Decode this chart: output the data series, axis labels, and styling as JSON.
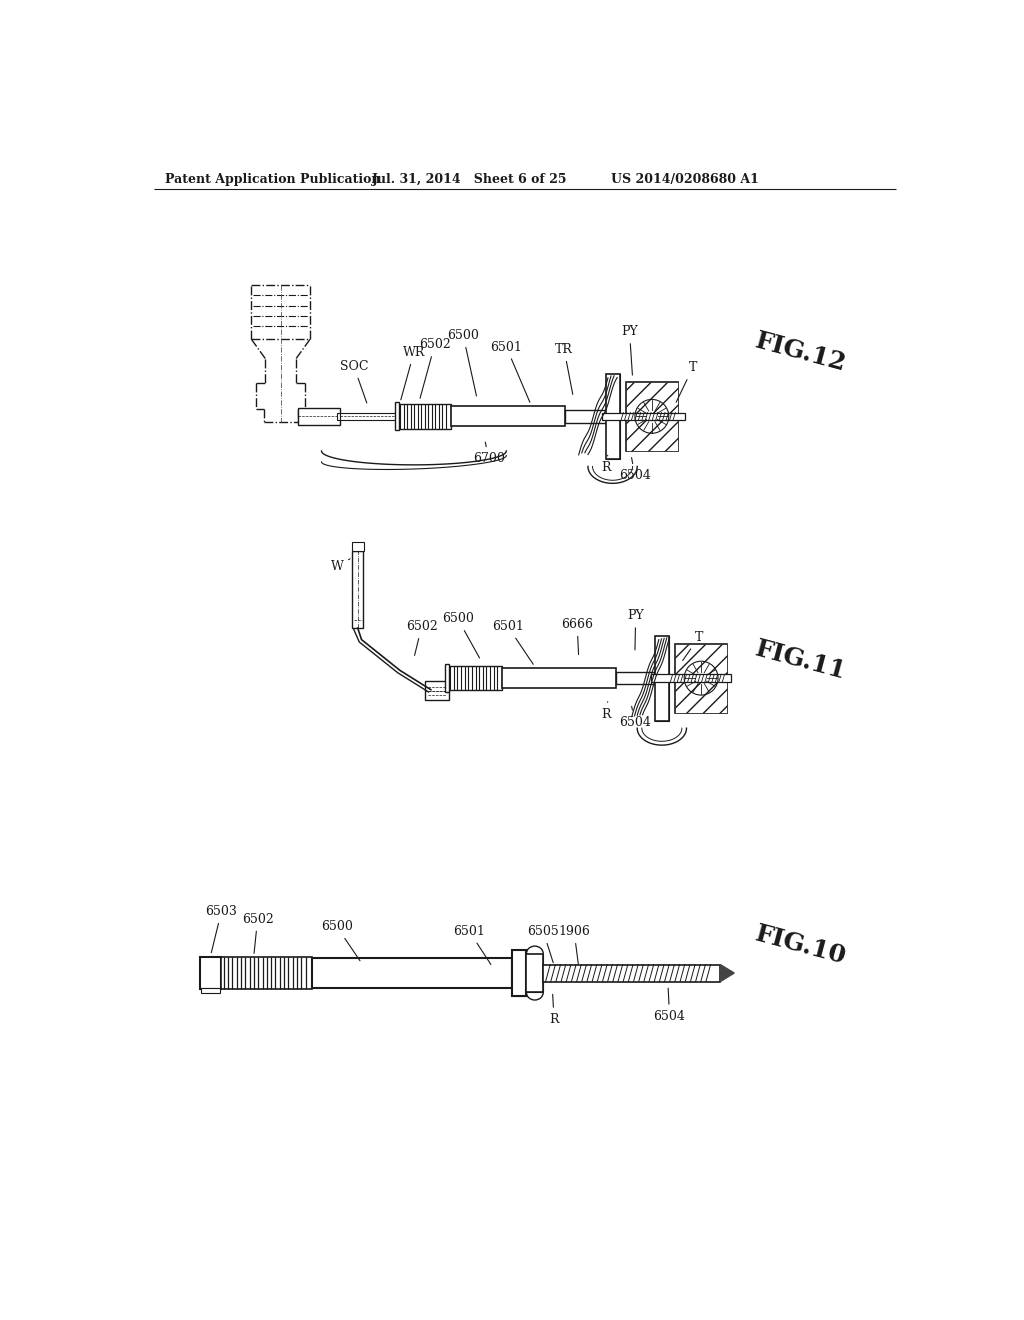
{
  "bg_color": "#ffffff",
  "header_left": "Patent Application Publication",
  "header_mid": "Jul. 31, 2014   Sheet 6 of 25",
  "header_right": "US 2014/0208680 A1",
  "fig12_label": "FIG.12",
  "fig11_label": "FIG.11",
  "fig10_label": "FIG.10",
  "lc": "#1a1a1a",
  "tc": "#1a1a1a"
}
